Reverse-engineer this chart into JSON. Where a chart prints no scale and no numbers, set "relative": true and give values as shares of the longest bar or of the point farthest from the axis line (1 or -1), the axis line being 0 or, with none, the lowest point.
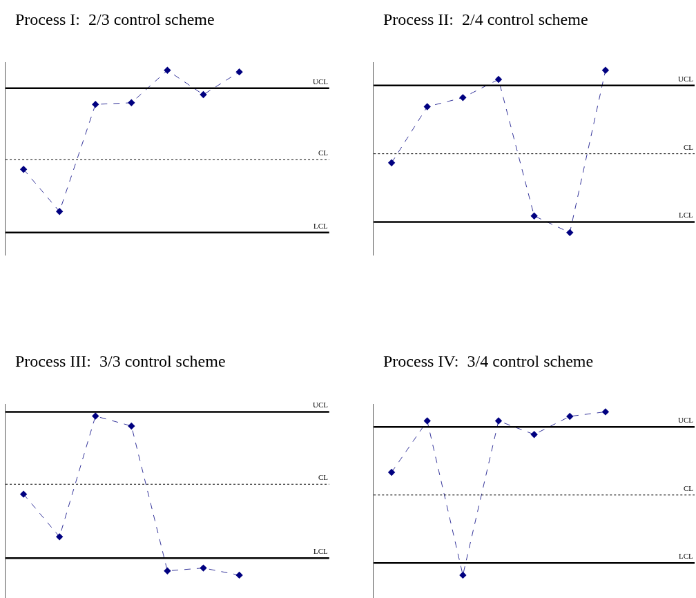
{
  "chart_data": [
    {
      "type": "line",
      "title": "Process I:  2/3 control scheme",
      "categories": [
        null,
        null,
        null,
        null,
        null,
        null,
        null,
        null,
        null
      ],
      "relative": true,
      "tick_labels": false,
      "marker": "diamond",
      "line_style": "dashed",
      "series": [
        {
          "color": "#000080",
          "values": [
            0.39,
            0.13,
            0.79,
            0.8,
            1,
            0.85,
            0.99,
            null,
            null
          ]
        }
      ],
      "ref_lines": [
        {
          "axis": "y",
          "value": 0.89,
          "label": "UCL",
          "line_style": "solid",
          "color": "#000000"
        },
        {
          "axis": "y",
          "value": 0.45,
          "label": "CL",
          "line_style": "dotted",
          "color": "#000000"
        },
        {
          "axis": "y",
          "value": 0,
          "label": "LCL",
          "line_style": "solid",
          "color": "#000000"
        }
      ]
    },
    {
      "type": "line",
      "title": "Process II:  2/4 control scheme",
      "categories": [
        null,
        null,
        null,
        null,
        null,
        null,
        null,
        null,
        null
      ],
      "relative": true,
      "tick_labels": false,
      "marker": "diamond",
      "line_style": "dashed",
      "series": [
        {
          "color": "#000080",
          "values": [
            0.39,
            0.76,
            0.82,
            0.94,
            0.04,
            -0.07,
            1,
            null,
            null
          ]
        }
      ],
      "ref_lines": [
        {
          "axis": "y",
          "value": 0.9,
          "label": "UCL",
          "line_style": "solid",
          "color": "#000000"
        },
        {
          "axis": "y",
          "value": 0.45,
          "label": "CL",
          "line_style": "dotted",
          "color": "#000000"
        },
        {
          "axis": "y",
          "value": 0,
          "label": "LCL",
          "line_style": "solid",
          "color": "#000000"
        }
      ]
    },
    {
      "type": "line",
      "title": "Process III:  3/3 control scheme",
      "categories": [
        null,
        null,
        null,
        null,
        null,
        null,
        null,
        null,
        null
      ],
      "relative": true,
      "tick_labels": false,
      "marker": "diamond",
      "line_style": "dashed",
      "series": [
        {
          "color": "#000080",
          "values": [
            0.45,
            0.15,
            1,
            0.93,
            -0.09,
            -0.07,
            -0.12,
            null,
            null
          ]
        }
      ],
      "ref_lines": [
        {
          "axis": "y",
          "value": 1.03,
          "label": "UCL",
          "line_style": "solid",
          "color": "#000000"
        },
        {
          "axis": "y",
          "value": 0.52,
          "label": "CL",
          "line_style": "dotted",
          "color": "#000000"
        },
        {
          "axis": "y",
          "value": 0,
          "label": "LCL",
          "line_style": "solid",
          "color": "#000000"
        }
      ]
    },
    {
      "type": "line",
      "title": "Process IV:  3/4 control scheme",
      "categories": [
        null,
        null,
        null,
        null,
        null,
        null,
        null,
        null,
        null
      ],
      "relative": true,
      "tick_labels": false,
      "marker": "diamond",
      "line_style": "dashed",
      "series": [
        {
          "color": "#000080",
          "values": [
            0.6,
            0.94,
            -0.08,
            0.94,
            0.85,
            0.97,
            1,
            null,
            null
          ]
        }
      ],
      "ref_lines": [
        {
          "axis": "y",
          "value": 0.9,
          "label": "UCL",
          "line_style": "solid",
          "color": "#000000"
        },
        {
          "axis": "y",
          "value": 0.45,
          "label": "CL",
          "line_style": "dotted",
          "color": "#000000"
        },
        {
          "axis": "y",
          "value": 0,
          "label": "LCL",
          "line_style": "solid",
          "color": "#000000"
        }
      ]
    }
  ]
}
